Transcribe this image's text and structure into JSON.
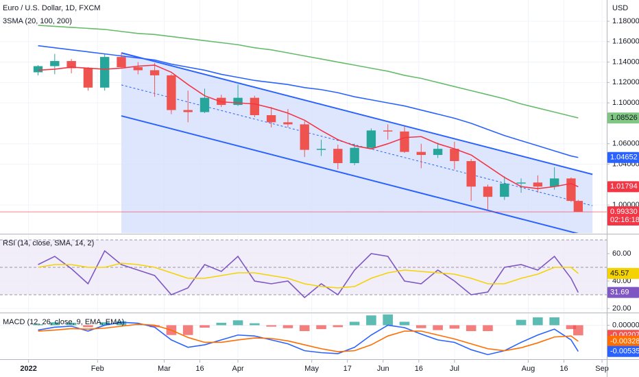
{
  "chart_data": [
    {
      "type": "candlestick",
      "title": "Euro / U.S. Dollar, 1D, FXCM",
      "subtitle": "3SMA (20, 100, 200)",
      "unit": "USD",
      "x": [
        "2022-01-07",
        "2022-01-14",
        "2022-01-21",
        "2022-01-28",
        "2022-02-04",
        "2022-02-11",
        "2022-02-18",
        "2022-02-25",
        "2022-03-04",
        "2022-03-11",
        "2022-03-18",
        "2022-03-25",
        "2022-04-01",
        "2022-04-08",
        "2022-04-15",
        "2022-04-22",
        "2022-04-29",
        "2022-05-06",
        "2022-05-13",
        "2022-05-20",
        "2022-05-27",
        "2022-06-03",
        "2022-06-10",
        "2022-06-17",
        "2022-06-24",
        "2022-07-01",
        "2022-07-08",
        "2022-07-15",
        "2022-07-22",
        "2022-07-29",
        "2022-08-05",
        "2022-08-12",
        "2022-08-19",
        "2022-08-22"
      ],
      "open": [
        1.13,
        1.136,
        1.141,
        1.134,
        1.115,
        1.145,
        1.135,
        1.132,
        1.127,
        1.093,
        1.091,
        1.105,
        1.098,
        1.105,
        1.088,
        1.081,
        1.079,
        1.054,
        1.055,
        1.041,
        1.056,
        1.073,
        1.072,
        1.052,
        1.049,
        1.055,
        1.043,
        1.018,
        1.008,
        1.021,
        1.022,
        1.018,
        1.026,
        1.004
      ],
      "high": [
        1.137,
        1.148,
        1.143,
        1.135,
        1.148,
        1.149,
        1.14,
        1.139,
        1.128,
        1.112,
        1.114,
        1.108,
        1.118,
        1.107,
        1.096,
        1.094,
        1.082,
        1.064,
        1.059,
        1.06,
        1.075,
        1.079,
        1.077,
        1.06,
        1.061,
        1.062,
        1.045,
        1.02,
        1.028,
        1.026,
        1.029,
        1.037,
        1.027,
        1.005
      ],
      "low": [
        1.127,
        1.128,
        1.129,
        1.112,
        1.112,
        1.134,
        1.128,
        1.106,
        1.089,
        1.081,
        1.09,
        1.096,
        1.097,
        1.086,
        1.076,
        1.076,
        1.047,
        1.048,
        1.035,
        1.039,
        1.055,
        1.064,
        1.051,
        1.036,
        1.046,
        1.035,
        1.004,
        0.995,
        1.005,
        1.012,
        1.012,
        1.015,
        1.003,
        0.993
      ],
      "close": [
        1.136,
        1.141,
        1.134,
        1.115,
        1.145,
        1.135,
        1.132,
        1.127,
        1.093,
        1.091,
        1.105,
        1.098,
        1.105,
        1.088,
        1.081,
        1.079,
        1.054,
        1.055,
        1.041,
        1.056,
        1.073,
        1.072,
        1.052,
        1.049,
        1.055,
        1.043,
        1.018,
        1.008,
        1.021,
        1.022,
        1.018,
        1.026,
        1.004,
        0.9933
      ],
      "up_color": "#26a69a",
      "down_color": "#ef5350",
      "series": [
        {
          "color": "#f23645",
          "values": [
            1.132,
            1.133,
            1.135,
            1.134,
            1.133,
            1.134,
            1.136,
            1.137,
            1.13,
            1.118,
            1.107,
            1.101,
            1.1,
            1.099,
            1.095,
            1.09,
            1.083,
            1.073,
            1.064,
            1.058,
            1.055,
            1.06,
            1.066,
            1.067,
            1.06,
            1.055,
            1.049,
            1.038,
            1.027,
            1.018,
            1.016,
            1.018,
            1.021,
            1.01794
          ]
        },
        {
          "color": "#2962ff",
          "values": [
            1.156,
            1.154,
            1.152,
            1.15,
            1.148,
            1.146,
            1.144,
            1.142,
            1.138,
            1.135,
            1.132,
            1.128,
            1.125,
            1.122,
            1.12,
            1.118,
            1.115,
            1.113,
            1.11,
            1.106,
            1.103,
            1.1,
            1.097,
            1.093,
            1.089,
            1.085,
            1.08,
            1.074,
            1.068,
            1.063,
            1.058,
            1.053,
            1.048,
            1.04652
          ]
        },
        {
          "color": "#66bb6a",
          "values": [
            1.176,
            1.175,
            1.174,
            1.173,
            1.172,
            1.17,
            1.168,
            1.167,
            1.165,
            1.163,
            1.161,
            1.159,
            1.157,
            1.154,
            1.152,
            1.149,
            1.146,
            1.143,
            1.14,
            1.137,
            1.134,
            1.131,
            1.127,
            1.124,
            1.12,
            1.116,
            1.112,
            1.108,
            1.104,
            1.099,
            1.095,
            1.091,
            1.087,
            1.08526
          ]
        }
      ],
      "channel": {
        "start": "2022-02-11",
        "end": "2022-08-28",
        "upper": [
          1.149,
          1.03
        ],
        "middle": [
          1.1176,
          0.9993
        ],
        "lower": [
          1.0873,
          0.9683
        ],
        "color": "#2962ff",
        "fill": "#d6e0fe"
      },
      "price_line": {
        "value": 0.9933,
        "color": "#f23645"
      },
      "badges": [
        {
          "value": 1.08526,
          "label": "1.08526",
          "color": "#81c784",
          "text_color": "#131722"
        },
        {
          "value": 1.04652,
          "label": "1.04652",
          "color": "#2962ff",
          "text_color": "#ffffff"
        },
        {
          "value": 1.01794,
          "label": "1.01794",
          "color": "#f23645",
          "text_color": "#ffffff"
        },
        {
          "value": 0.9933,
          "label": "0.99330",
          "sublabel": "02:16:18",
          "color": "#f23645",
          "text_color": "#ffffff"
        }
      ],
      "xlim": [
        "2021-12-22",
        "2022-09-03"
      ],
      "ylim": [
        0.9725,
        1.2008
      ],
      "yticks": [
        {
          "value": 1.18,
          "label": "1.18000"
        },
        {
          "value": 1.16,
          "label": "1.16000"
        },
        {
          "value": 1.14,
          "label": "1.14000"
        },
        {
          "value": 1.12,
          "label": "1.12000"
        },
        {
          "value": 1.1,
          "label": "1.10000"
        },
        {
          "value": 1.06,
          "label": "1.06000"
        },
        {
          "value": 1.04,
          "label": "1.04000"
        },
        {
          "value": 1.0,
          "label": "1.00000"
        }
      ],
      "grid": true
    },
    {
      "type": "line",
      "title": "RSI (14, close, SMA, 14, 2)",
      "x": [
        "2022-01-07",
        "2022-01-14",
        "2022-01-21",
        "2022-01-28",
        "2022-02-04",
        "2022-02-11",
        "2022-02-18",
        "2022-02-25",
        "2022-03-04",
        "2022-03-11",
        "2022-03-18",
        "2022-03-25",
        "2022-04-01",
        "2022-04-08",
        "2022-04-15",
        "2022-04-22",
        "2022-04-29",
        "2022-05-06",
        "2022-05-13",
        "2022-05-20",
        "2022-05-27",
        "2022-06-03",
        "2022-06-10",
        "2022-06-17",
        "2022-06-24",
        "2022-07-01",
        "2022-07-08",
        "2022-07-15",
        "2022-07-22",
        "2022-07-29",
        "2022-08-05",
        "2022-08-12",
        "2022-08-19",
        "2022-08-22"
      ],
      "series": [
        {
          "color": "#7e57c2",
          "values": [
            52,
            58,
            49,
            38,
            62,
            52,
            48,
            44,
            30,
            35,
            52,
            47,
            58,
            40,
            38,
            40,
            28,
            38,
            30,
            48,
            60,
            58,
            40,
            38,
            48,
            40,
            30,
            32,
            50,
            52,
            48,
            58,
            42,
            31.69
          ]
        },
        {
          "color": "#f5d300",
          "values": [
            50,
            52,
            52,
            50,
            50,
            53,
            52,
            50,
            46,
            42,
            42,
            44,
            46,
            46,
            44,
            42,
            38,
            36,
            35,
            36,
            42,
            46,
            48,
            47,
            46,
            45,
            42,
            38,
            38,
            42,
            45,
            50,
            50,
            45.57
          ]
        }
      ],
      "bands": [
        70,
        50,
        30
      ],
      "band_fill": "#ede7f6",
      "band_color": "#787b86",
      "badges": [
        {
          "value": 45.57,
          "label": "45.57",
          "color": "#f5d300",
          "text_color": "#131722"
        },
        {
          "value": 31.69,
          "label": "31.69",
          "color": "#7e57c2",
          "text_color": "#ffffff"
        }
      ],
      "xlim": [
        "2021-12-22",
        "2022-09-03"
      ],
      "ylim": [
        17.5,
        73.5
      ],
      "yticks": [
        {
          "value": 60,
          "label": "60.00"
        },
        {
          "value": 40,
          "label": "40.00"
        },
        {
          "value": 20,
          "label": "20.00"
        }
      ],
      "grid": true
    },
    {
      "type": "macd",
      "title": "MACD (12, 26, close, 9, EMA, EMA)",
      "x": [
        "2022-01-07",
        "2022-01-14",
        "2022-01-21",
        "2022-01-28",
        "2022-02-04",
        "2022-02-11",
        "2022-02-18",
        "2022-02-25",
        "2022-03-04",
        "2022-03-11",
        "2022-03-18",
        "2022-03-25",
        "2022-04-01",
        "2022-04-08",
        "2022-04-15",
        "2022-04-22",
        "2022-04-29",
        "2022-05-06",
        "2022-05-13",
        "2022-05-20",
        "2022-05-27",
        "2022-06-03",
        "2022-06-10",
        "2022-06-17",
        "2022-06-24",
        "2022-07-01",
        "2022-07-08",
        "2022-07-15",
        "2022-07-22",
        "2022-07-29",
        "2022-08-05",
        "2022-08-12",
        "2022-08-19",
        "2022-08-22"
      ],
      "histogram": {
        "up_color": "#26a69a",
        "down_color": "#ef5350",
        "values": [
          0.0002,
          0.0006,
          0.0005,
          -0.0004,
          0.0006,
          0.0008,
          0.0002,
          -0.0004,
          -0.002,
          -0.002,
          -0.0005,
          0.0005,
          0.001,
          0.0004,
          -0.0003,
          -0.0006,
          -0.0012,
          -0.0008,
          -0.0004,
          0.0007,
          0.002,
          0.0022,
          0.0007,
          -0.0006,
          -0.001,
          -0.0007,
          -0.0012,
          -0.0012,
          0.0,
          0.0011,
          0.0016,
          0.0016,
          -0.0008,
          -0.00207
        ]
      },
      "series": [
        {
          "color": "#2962ff",
          "values": [
            -0.001,
            -0.0004,
            -0.0002,
            -0.0012,
            0.0,
            0.0006,
            0.0004,
            -0.0004,
            -0.003,
            -0.0045,
            -0.004,
            -0.003,
            -0.002,
            -0.0022,
            -0.003,
            -0.0038,
            -0.0052,
            -0.0056,
            -0.0058,
            -0.0045,
            -0.002,
            0.0,
            -0.0005,
            -0.0018,
            -0.003,
            -0.0035,
            -0.005,
            -0.006,
            -0.0052,
            -0.0035,
            -0.002,
            -0.0008,
            -0.003,
            -0.00535
          ]
        },
        {
          "color": "#ff6d00",
          "values": [
            -0.0012,
            -0.001,
            -0.0007,
            -0.0008,
            -0.0006,
            -0.0002,
            0.0002,
            0.0,
            -0.001,
            -0.0025,
            -0.0035,
            -0.0035,
            -0.003,
            -0.0026,
            -0.0027,
            -0.0032,
            -0.004,
            -0.0048,
            -0.0054,
            -0.0052,
            -0.004,
            -0.0022,
            -0.0012,
            -0.0012,
            -0.002,
            -0.0028,
            -0.0038,
            -0.0048,
            -0.0052,
            -0.0046,
            -0.0036,
            -0.0024,
            -0.0022,
            -0.00328
          ]
        }
      ],
      "badges": [
        {
          "value": -0.00207,
          "label": "-0.00207",
          "color": "#ef5350",
          "text_color": "#ffffff"
        },
        {
          "value": -0.00328,
          "label": "-0.00328",
          "color": "#ff6d00",
          "text_color": "#ffffff"
        },
        {
          "value": -0.00535,
          "label": "-0.00535",
          "color": "#2962ff",
          "text_color": "#ffffff"
        }
      ],
      "xlim": [
        "2021-12-22",
        "2022-09-03"
      ],
      "ylim": [
        -0.00665,
        0.0023
      ],
      "yticks": [
        {
          "value": 0,
          "label": "0.00000"
        }
      ],
      "xticks": [
        {
          "value": "2022-01-03",
          "label": "2022"
        },
        {
          "value": "2022-02-01",
          "label": "Feb"
        },
        {
          "value": "2022-03-01",
          "label": "Mar"
        },
        {
          "value": "2022-03-16",
          "label": "16"
        },
        {
          "value": "2022-04-01",
          "label": "Apr"
        },
        {
          "value": "2022-05-02",
          "label": "May"
        },
        {
          "value": "2022-05-17",
          "label": "17"
        },
        {
          "value": "2022-06-01",
          "label": "Jun"
        },
        {
          "value": "2022-06-16",
          "label": "16"
        },
        {
          "value": "2022-07-01",
          "label": "Jul"
        },
        {
          "value": "2022-08-01",
          "label": "Aug"
        },
        {
          "value": "2022-08-16",
          "label": "16"
        },
        {
          "value": "2022-09-01",
          "label": "Sep"
        }
      ],
      "grid": true
    }
  ]
}
